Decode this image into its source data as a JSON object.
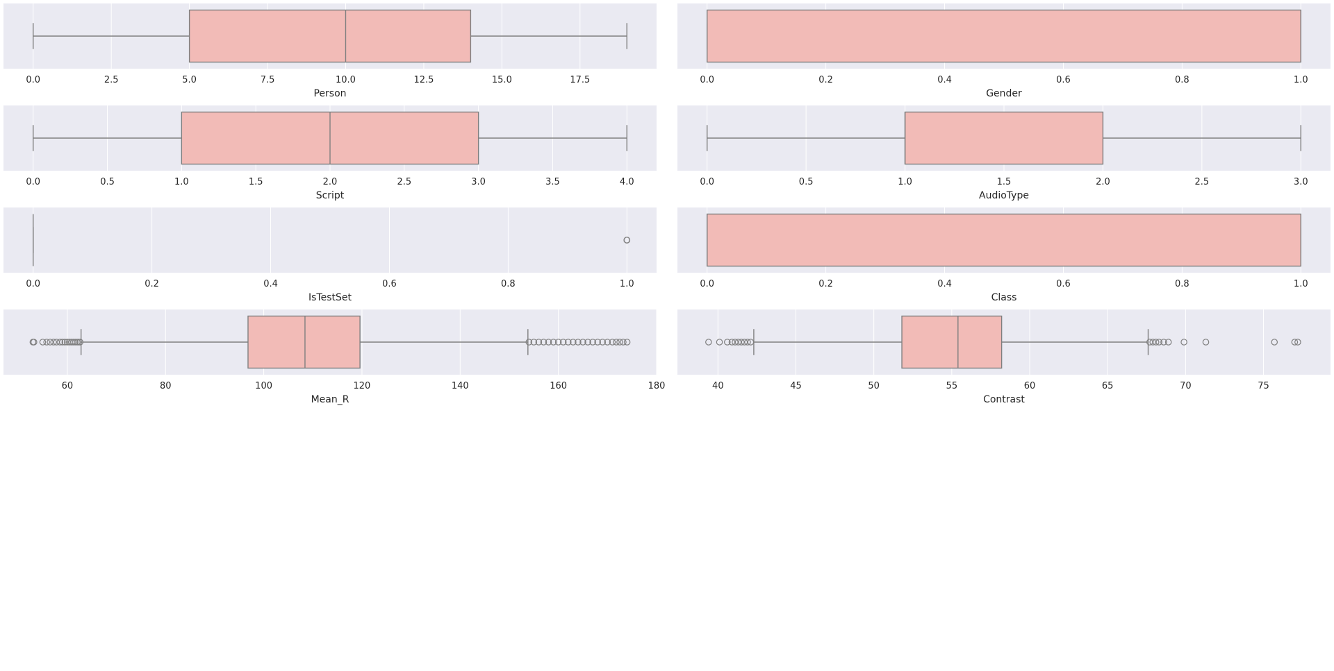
{
  "chart_data": [
    {
      "type": "boxplot",
      "xlabel": "Person",
      "xlim": [
        -0.95,
        19.95
      ],
      "ticks": [
        0.0,
        2.5,
        5.0,
        7.5,
        10.0,
        12.5,
        15.0,
        17.5
      ],
      "tick_labels": [
        "0.0",
        "2.5",
        "5.0",
        "7.5",
        "10.0",
        "12.5",
        "15.0",
        "17.5"
      ],
      "box": {
        "whisker_low": 0,
        "q1": 5,
        "median": 10,
        "q3": 14,
        "whisker_high": 19
      },
      "outliers": []
    },
    {
      "type": "boxplot",
      "xlabel": "Gender",
      "xlim": [
        -0.05,
        1.05
      ],
      "ticks": [
        0.0,
        0.2,
        0.4,
        0.6,
        0.8,
        1.0
      ],
      "tick_labels": [
        "0.0",
        "0.2",
        "0.4",
        "0.6",
        "0.8",
        "1.0"
      ],
      "box": {
        "whisker_low": 0,
        "q1": 0,
        "median": 1,
        "q3": 1,
        "whisker_high": 1
      },
      "outliers": []
    },
    {
      "type": "boxplot",
      "xlabel": "Script",
      "xlim": [
        -0.2,
        4.2
      ],
      "ticks": [
        0.0,
        0.5,
        1.0,
        1.5,
        2.0,
        2.5,
        3.0,
        3.5,
        4.0
      ],
      "tick_labels": [
        "0.0",
        "0.5",
        "1.0",
        "1.5",
        "2.0",
        "2.5",
        "3.0",
        "3.5",
        "4.0"
      ],
      "box": {
        "whisker_low": 0,
        "q1": 1,
        "median": 2,
        "q3": 3,
        "whisker_high": 4
      },
      "outliers": []
    },
    {
      "type": "boxplot",
      "xlabel": "AudioType",
      "xlim": [
        -0.15,
        3.15
      ],
      "ticks": [
        0.0,
        0.5,
        1.0,
        1.5,
        2.0,
        2.5,
        3.0
      ],
      "tick_labels": [
        "0.0",
        "0.5",
        "1.0",
        "1.5",
        "2.0",
        "2.5",
        "3.0"
      ],
      "box": {
        "whisker_low": 0,
        "q1": 1,
        "median": 1,
        "q3": 2,
        "whisker_high": 3
      },
      "outliers": []
    },
    {
      "type": "boxplot",
      "xlabel": "IsTestSet",
      "xlim": [
        -0.05,
        1.05
      ],
      "ticks": [
        0.0,
        0.2,
        0.4,
        0.6,
        0.8,
        1.0
      ],
      "tick_labels": [
        "0.0",
        "0.2",
        "0.4",
        "0.6",
        "0.8",
        "1.0"
      ],
      "box": {
        "whisker_low": 0,
        "q1": 0,
        "median": 0,
        "q3": 0,
        "whisker_high": 0
      },
      "outliers": [
        1.0,
        1.0,
        1.0
      ]
    },
    {
      "type": "boxplot",
      "xlabel": "Class",
      "xlim": [
        -0.05,
        1.05
      ],
      "ticks": [
        0.0,
        0.2,
        0.4,
        0.6,
        0.8,
        1.0
      ],
      "tick_labels": [
        "0.0",
        "0.2",
        "0.4",
        "0.6",
        "0.8",
        "1.0"
      ],
      "box": {
        "whisker_low": 0,
        "q1": 0,
        "median": 0,
        "q3": 1,
        "whisker_high": 1
      },
      "outliers": []
    },
    {
      "type": "boxplot",
      "xlabel": "Mean_R",
      "xlim": [
        47,
        180
      ],
      "ticks": [
        60,
        80,
        100,
        120,
        140,
        160,
        180
      ],
      "tick_labels": [
        "60",
        "80",
        "100",
        "120",
        "140",
        "160",
        "180"
      ],
      "box": {
        "whisker_low": 62.8,
        "q1": 96.8,
        "median": 108.4,
        "q3": 119.6,
        "whisker_high": 153.8
      },
      "outliers": [
        53.0,
        53.2,
        55.0,
        55.8,
        56.5,
        57.2,
        57.8,
        58.5,
        59.0,
        59.5,
        60.0,
        60.4,
        60.8,
        61.2,
        61.6,
        62.0,
        62.3,
        62.6,
        154.0,
        155.0,
        156.0,
        157.0,
        158.0,
        159.0,
        160.0,
        161.0,
        162.0,
        163.0,
        164.0,
        165.0,
        166.0,
        167.0,
        168.0,
        169.0,
        170.0,
        171.0,
        171.8,
        172.5,
        173.2,
        174.0
      ]
    },
    {
      "type": "boxplot",
      "xlabel": "Contrast",
      "xlim": [
        37.4,
        79.3
      ],
      "ticks": [
        40,
        45,
        50,
        55,
        60,
        65,
        70,
        75
      ],
      "tick_labels": [
        "40",
        "45",
        "50",
        "55",
        "60",
        "65",
        "70",
        "75"
      ],
      "box": {
        "whisker_low": 42.3,
        "q1": 51.8,
        "median": 55.4,
        "q3": 58.2,
        "whisker_high": 67.6
      },
      "outliers": [
        39.4,
        40.1,
        40.6,
        40.9,
        41.1,
        41.3,
        41.5,
        41.7,
        41.9,
        42.1,
        67.7,
        67.9,
        68.1,
        68.3,
        68.6,
        68.9,
        69.9,
        71.3,
        75.7,
        77.0,
        77.2
      ]
    }
  ],
  "colors": {
    "panel_background": "#eaeaf2",
    "grid": "#ffffff",
    "box_fill": "#f2bbb7",
    "line": "#7f7f7f",
    "text": "#262626"
  }
}
